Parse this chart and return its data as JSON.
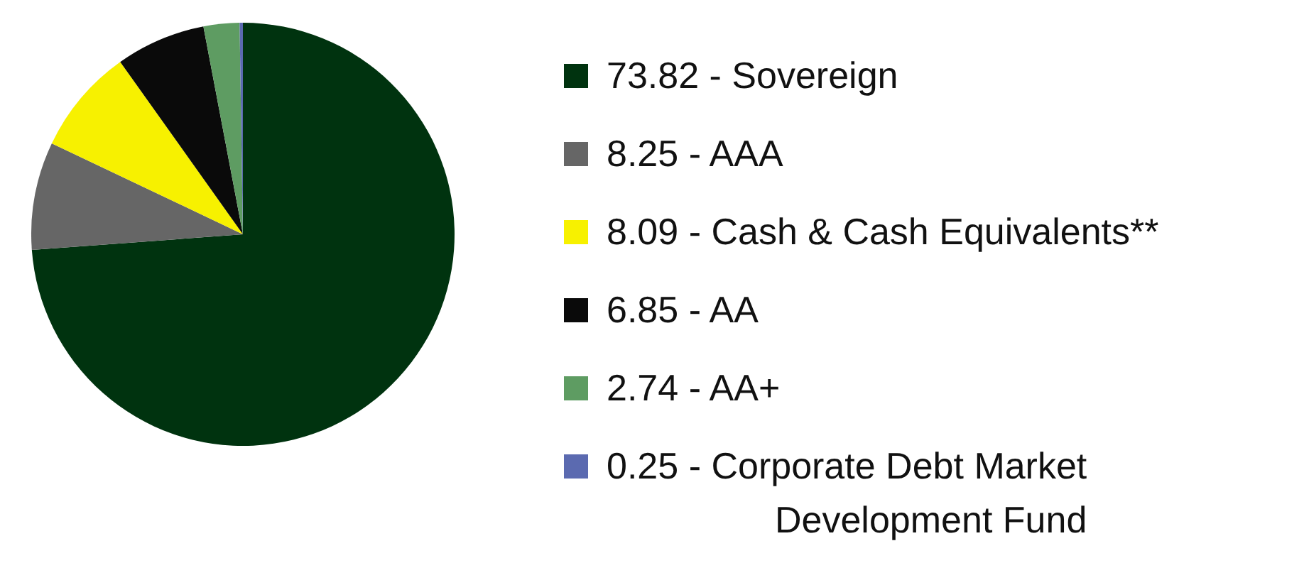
{
  "chart_data": {
    "type": "pie",
    "categories": [
      "73.82 - Sovereign",
      "8.25 - AAA",
      "8.09 - Cash & Cash Equivalents**",
      "6.85 - AA",
      "2.74 - AA+",
      "0.25 - Corporate Debt Market Development Fund"
    ],
    "values": [
      73.82,
      8.25,
      8.09,
      6.85,
      2.74,
      0.25
    ],
    "colors": [
      "#00330f",
      "#666666",
      "#f7f100",
      "#0a0a0a",
      "#5e9c62",
      "#5b6ab0"
    ],
    "legend": "right"
  }
}
